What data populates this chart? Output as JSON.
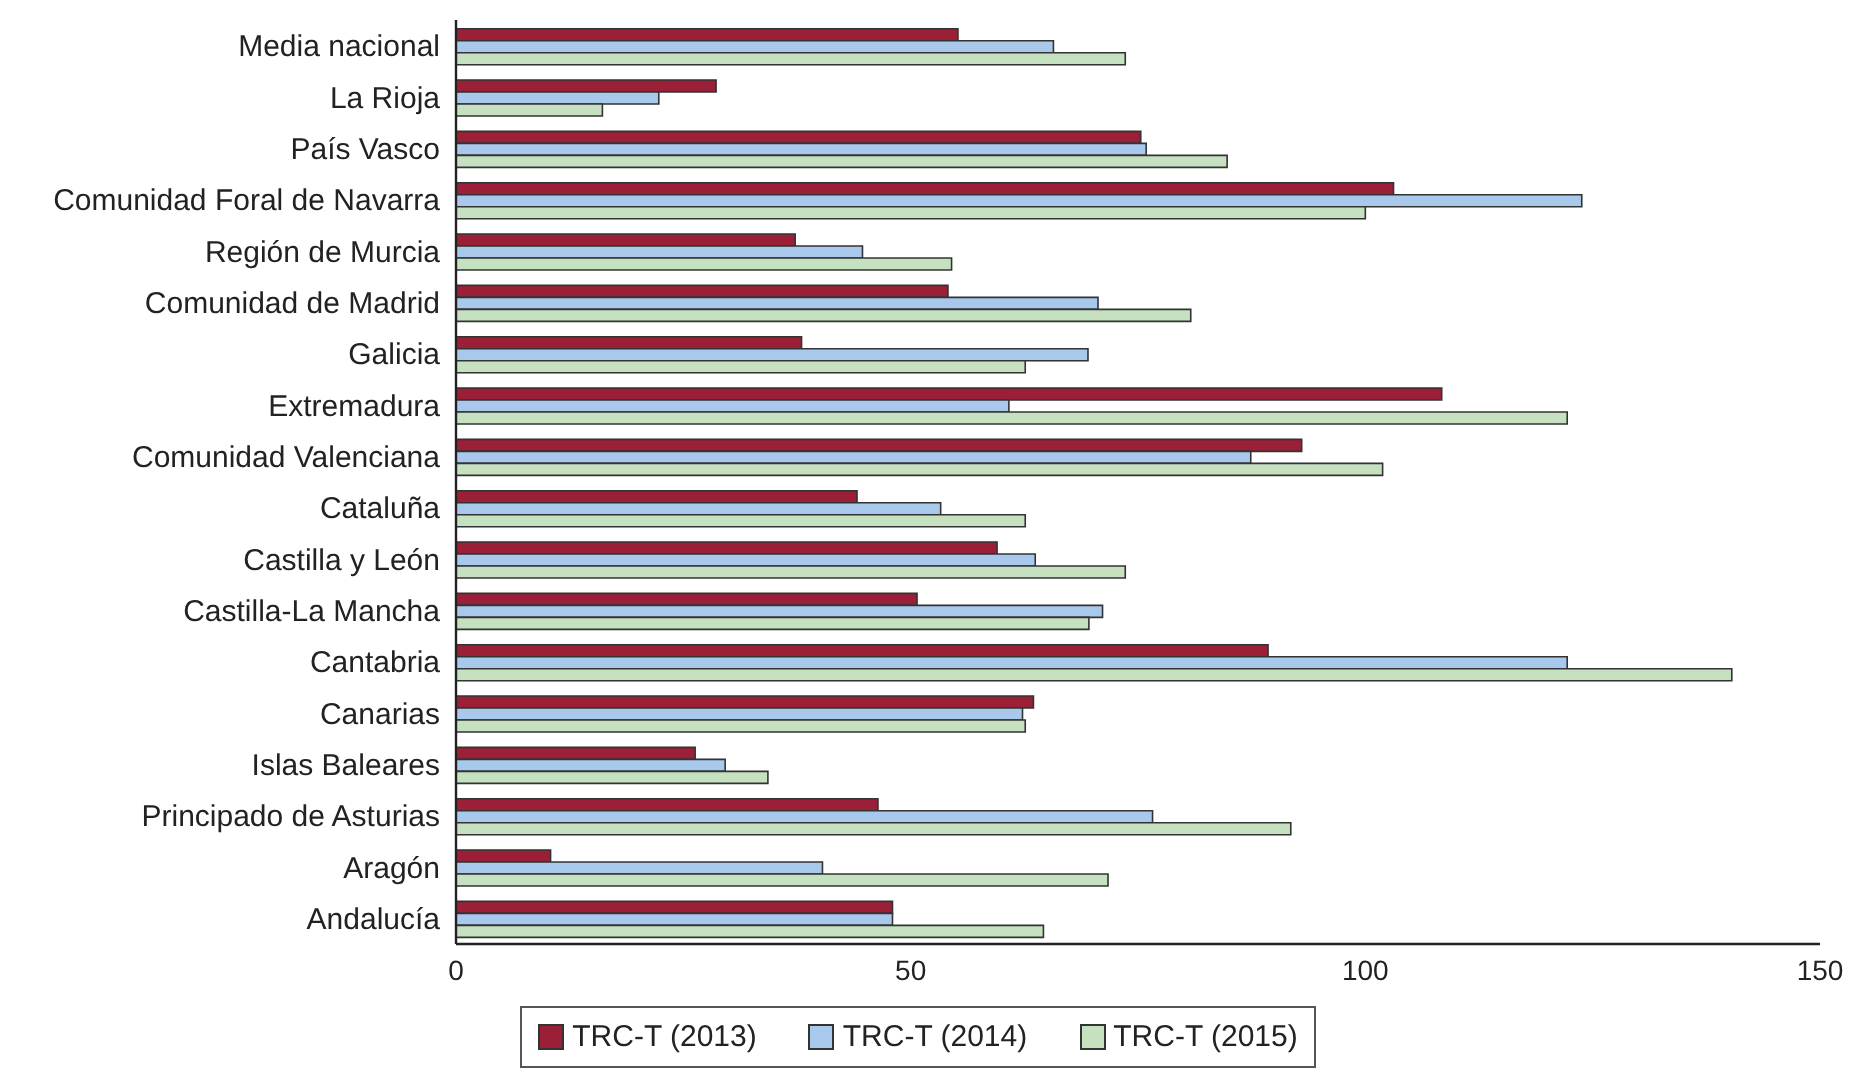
{
  "chart_data": {
    "type": "bar",
    "orientation": "horizontal",
    "categories": [
      "Media nacional",
      "La Rioja",
      "País Vasco",
      "Comunidad Foral de Navarra",
      "Región de Murcia",
      "Comunidad de Madrid",
      "Galicia",
      "Extremadura",
      "Comunidad Valenciana",
      "Cataluña",
      "Castilla y León",
      "Castilla-La Mancha",
      "Cantabria",
      "Canarias",
      "Islas Baleares",
      "Principado de Asturias",
      "Aragón",
      "Andalucía"
    ],
    "series": [
      {
        "name": "TRC-T (2013)",
        "color": "#9b2037",
        "values": [
          55.2,
          28.6,
          75.3,
          103.1,
          37.3,
          54.1,
          38.0,
          108.4,
          93.0,
          44.1,
          59.5,
          50.7,
          89.3,
          63.5,
          26.3,
          46.4,
          10.4,
          48.0
        ]
      },
      {
        "name": "TRC-T (2014)",
        "color": "#a9c9ec",
        "values": [
          65.7,
          22.3,
          75.9,
          123.8,
          44.7,
          70.6,
          69.5,
          60.8,
          87.4,
          53.3,
          63.7,
          71.1,
          122.2,
          62.3,
          29.6,
          76.6,
          40.3,
          48.0
        ]
      },
      {
        "name": "TRC-T (2015)",
        "color": "#c5e1c0",
        "values": [
          73.6,
          16.1,
          84.8,
          100.0,
          54.5,
          80.8,
          62.6,
          122.2,
          101.9,
          62.6,
          73.6,
          69.6,
          140.3,
          62.6,
          34.3,
          91.8,
          71.7,
          64.6
        ]
      }
    ],
    "xlim": [
      0,
      150
    ],
    "xticks": [
      0,
      50,
      100,
      150
    ],
    "legend": "bottom"
  }
}
